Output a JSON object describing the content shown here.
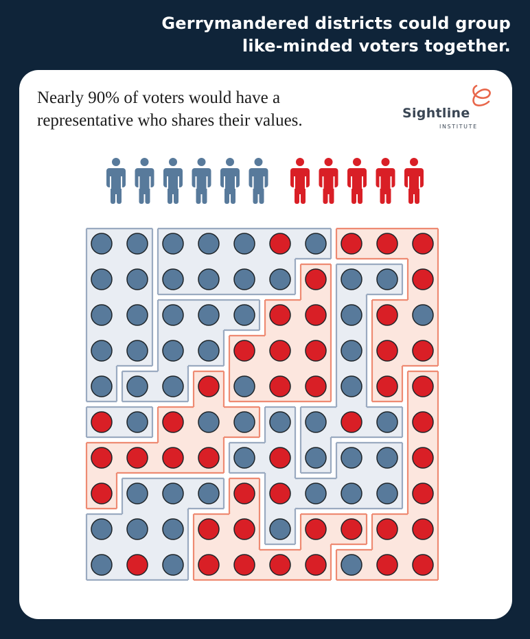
{
  "header": {
    "headline_line1": "Gerrymandered districts could group",
    "headline_line2": "like-minded voters together."
  },
  "card": {
    "subtitle_line1": "Nearly 90% of voters would have a",
    "subtitle_line2": "representative who shares their values."
  },
  "logo": {
    "wordmark": "Sightline",
    "subline": "INSTITUTE",
    "icon": "sightline-loop-icon"
  },
  "colors": {
    "background": "#0f2439",
    "blue": "#587a9b",
    "red": "#d91f26",
    "blue_district_fill": "#e9edf3",
    "blue_district_stroke": "#9aaac0",
    "red_district_fill": "#fce6de",
    "red_district_stroke": "#ee8a72",
    "logo_accent": "#e8664a"
  },
  "people": {
    "icon": "person-icon",
    "blue_count": 6,
    "red_count": 5
  },
  "chart_data": {
    "type": "table",
    "title": "Gerrymandered districts could group like-minded voters together.",
    "description": "10x10 grid of voters; B = blue voter, R = red voter. District map groups cells into districts; each district colored by majority.",
    "voters": [
      "BBBBBRBRRR",
      "BBBBBBRBBR",
      "BBBBBRRBRB",
      "BBBBRRRBRR",
      "BBBRBRRBRR",
      "RBRBBBBRBR",
      "RRRRBRBBBR",
      "RBBBRRBBBR",
      "BBBRRBRRRR",
      "BRBRRRRBRR"
    ],
    "districts": [
      [
        "1",
        "1",
        "2",
        "2",
        "2",
        "2",
        "2",
        "T",
        "T",
        "T"
      ],
      [
        "1",
        "1",
        "2",
        "2",
        "2",
        "2",
        "M",
        "A",
        "A",
        "T"
      ],
      [
        "1",
        "1",
        "3",
        "3",
        "3",
        "M",
        "M",
        "A",
        "T",
        "T"
      ],
      [
        "1",
        "1",
        "3",
        "3",
        "M",
        "M",
        "M",
        "A",
        "T",
        "T"
      ],
      [
        "1",
        "3",
        "3",
        "P",
        "M",
        "M",
        "M",
        "A",
        "T",
        "X"
      ],
      [
        "S",
        "S",
        "P",
        "P",
        "P",
        "B",
        "A",
        "A",
        "A",
        "X"
      ],
      [
        "P",
        "P",
        "P",
        "P",
        "B",
        "B",
        "A",
        "B",
        "B",
        "X"
      ],
      [
        "P",
        "L",
        "L",
        "L",
        "E",
        "B",
        "B",
        "B",
        "B",
        "X"
      ],
      [
        "L",
        "L",
        "L",
        "E",
        "E",
        "B",
        "E",
        "E",
        "X",
        "X"
      ],
      [
        "L",
        "L",
        "L",
        "E",
        "E",
        "E",
        "E",
        "X",
        "X",
        "X"
      ]
    ],
    "district_party": {
      "1": "blue",
      "2": "blue",
      "3": "blue",
      "S": "blue",
      "A": "blue",
      "B": "blue",
      "L": "blue",
      "T": "red",
      "M": "red",
      "P": "red",
      "E": "red",
      "X": "red"
    }
  }
}
